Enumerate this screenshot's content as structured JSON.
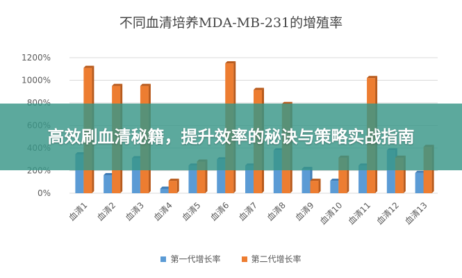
{
  "banner": {
    "text": "高效刷血清秘籍，提升效率的秘诀与策略实战指南"
  },
  "chart_data": {
    "type": "bar",
    "title": "不同血清培养MDA-MB-231的增殖率",
    "categories": [
      "血清1",
      "血清2",
      "血清3",
      "血清4",
      "血清5",
      "血清6",
      "血清7",
      "血清8",
      "血清9",
      "血清10",
      "血清11",
      "血清12",
      "血清13"
    ],
    "series": [
      {
        "name": "第一代增长率",
        "color": "#5b9bd5",
        "values": [
          345,
          160,
          310,
          40,
          245,
          300,
          245,
          380,
          215,
          110,
          245,
          380,
          180
        ]
      },
      {
        "name": "第二代增长率",
        "color": "#ed7d31",
        "values": [
          1110,
          950,
          950,
          110,
          280,
          1150,
          915,
          790,
          110,
          315,
          1020,
          315,
          410
        ]
      }
    ],
    "ylim": [
      0,
      1200
    ],
    "yticks": [
      "0%",
      "200%",
      "400%",
      "600%",
      "800%",
      "1000%",
      "1200%"
    ],
    "grid": true,
    "legend": "bottom"
  }
}
